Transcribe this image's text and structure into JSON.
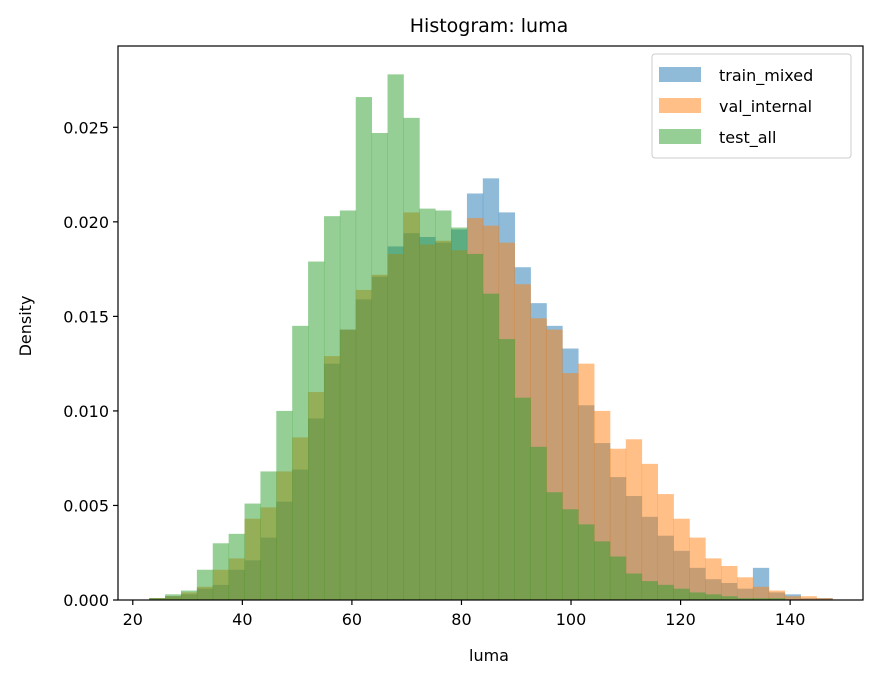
{
  "chart_data": {
    "type": "bar",
    "histogram": true,
    "title": "Histogram: luma",
    "xlabel": "luma",
    "ylabel": "Density",
    "xlim": [
      17.3,
      153.3
    ],
    "ylim": [
      0,
      0.0293
    ],
    "xticks": [
      20,
      40,
      60,
      80,
      100,
      120,
      140
    ],
    "yticks": [
      0.0,
      0.005,
      0.01,
      0.015,
      0.02,
      0.025
    ],
    "ytick_labels": [
      "0.000",
      "0.005",
      "0.010",
      "0.015",
      "0.020",
      "0.025"
    ],
    "grid": false,
    "legend_position": "top-right",
    "bin_start": 23,
    "bin_width": 2.9,
    "series": [
      {
        "name": "train_mixed",
        "color": "#1f77b4",
        "values": [
          0.0001,
          0.0002,
          0.0003,
          0.0006,
          0.0008,
          0.0016,
          0.0021,
          0.0033,
          0.0052,
          0.0069,
          0.0096,
          0.0125,
          0.0143,
          0.0159,
          0.0171,
          0.0187,
          0.0194,
          0.0192,
          0.0189,
          0.0196,
          0.0215,
          0.0223,
          0.0205,
          0.0176,
          0.0157,
          0.0145,
          0.0133,
          0.0103,
          0.0083,
          0.0065,
          0.0055,
          0.0044,
          0.0034,
          0.0026,
          0.0017,
          0.0011,
          0.0009,
          0.0006,
          0.0017,
          0.0004,
          0.0003,
          0.0001,
          0.0001
        ]
      },
      {
        "name": "val_internal",
        "color": "#ff7f0e",
        "values": [
          0.0001,
          0.0002,
          0.0004,
          0.0007,
          0.0016,
          0.0022,
          0.0043,
          0.0049,
          0.0068,
          0.0086,
          0.011,
          0.0129,
          0.0143,
          0.0164,
          0.0172,
          0.0183,
          0.0205,
          0.0188,
          0.019,
          0.0185,
          0.0202,
          0.0198,
          0.0189,
          0.0167,
          0.0149,
          0.0143,
          0.012,
          0.0125,
          0.01,
          0.008,
          0.0085,
          0.0072,
          0.0056,
          0.0043,
          0.0033,
          0.0022,
          0.0018,
          0.0012,
          0.0007,
          0.0005,
          0.0002,
          0.0002,
          0.0001
        ]
      },
      {
        "name": "test_all",
        "color": "#2ca02c",
        "values": [
          0.0001,
          0.0003,
          0.0005,
          0.0016,
          0.003,
          0.0035,
          0.0051,
          0.0068,
          0.01,
          0.0145,
          0.0179,
          0.0203,
          0.0206,
          0.0266,
          0.0247,
          0.0278,
          0.0255,
          0.0207,
          0.0206,
          0.0197,
          0.0183,
          0.0162,
          0.0138,
          0.0107,
          0.0081,
          0.0057,
          0.0048,
          0.004,
          0.0031,
          0.0023,
          0.0014,
          0.001,
          0.0008,
          0.0006,
          0.0004,
          0.0003,
          0.0002,
          0.0001,
          0.0001,
          0.0001,
          0.0,
          0.0,
          0.0
        ]
      }
    ]
  }
}
